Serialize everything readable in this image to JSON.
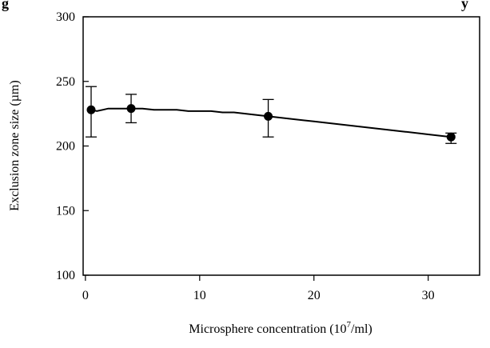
{
  "chart_data": {
    "type": "line",
    "title_fragment_left": "g",
    "title_fragment_right": "y",
    "xlabel": "Microsphere concentration (10",
    "xlabel_sup": "7",
    "xlabel_tail": "/ml)",
    "ylabel": "Exclusion zone size (µm)",
    "xlim": [
      -0.2,
      34.5
    ],
    "ylim": [
      100,
      300
    ],
    "x_ticks": [
      0,
      10,
      20,
      30
    ],
    "x_tick_labels": [
      "0",
      "10",
      "20",
      "30"
    ],
    "y_ticks": [
      100,
      150,
      200,
      250,
      300
    ],
    "y_tick_labels": [
      "100",
      "150",
      "200",
      "250",
      "300"
    ],
    "grid": false,
    "legend": "none",
    "series": [
      {
        "marker": "filled-circle",
        "color": "#000000",
        "points": [
          {
            "x": 0.5,
            "y": 228,
            "err_low": 207,
            "err_high": 246
          },
          {
            "x": 4,
            "y": 229,
            "err_low": 218,
            "err_high": 240
          },
          {
            "x": 16,
            "y": 223,
            "err_low": 207,
            "err_high": 236
          },
          {
            "x": 32,
            "y": 207,
            "err_low": 202,
            "err_high": 210
          }
        ]
      }
    ],
    "trend_line": {
      "x": [
        0.5,
        1,
        2,
        3,
        4,
        5,
        6,
        7,
        8,
        9,
        10,
        11,
        12,
        13,
        14,
        15,
        16,
        17,
        18,
        20,
        22,
        24,
        26,
        28,
        30,
        32
      ],
      "y": [
        228,
        227,
        229,
        229,
        229,
        229,
        228,
        228,
        228,
        227,
        227,
        227,
        226,
        226,
        225,
        224,
        223,
        222,
        221,
        219,
        217,
        215,
        213,
        211,
        209,
        207
      ]
    }
  }
}
